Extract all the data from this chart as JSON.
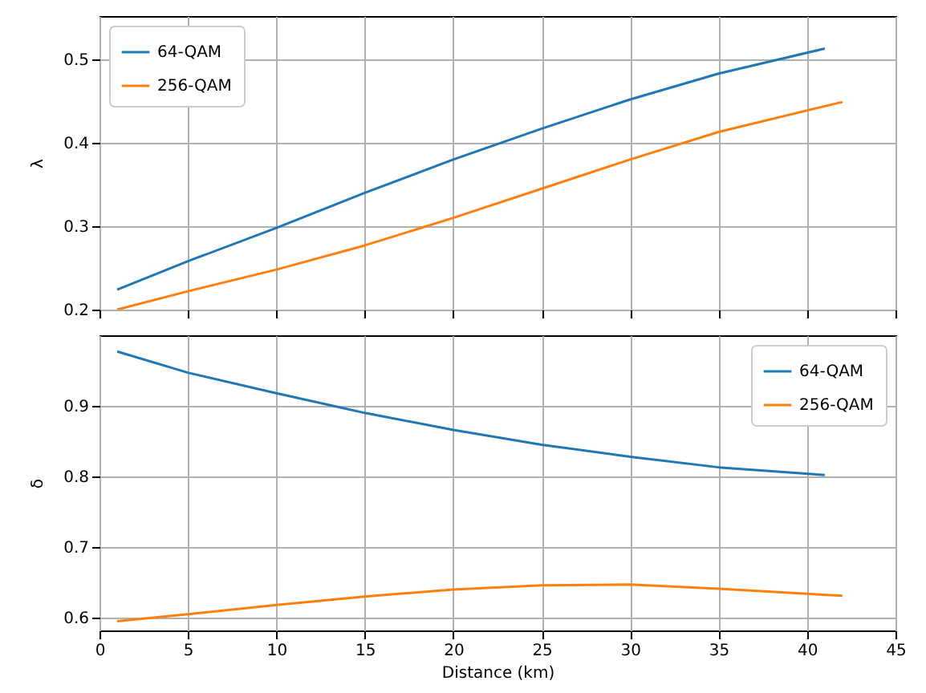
{
  "chart_data": [
    {
      "type": "line",
      "ylabel": "λ",
      "xlim": [
        0,
        45
      ],
      "xticks": [
        0,
        5,
        10,
        15,
        20,
        25,
        30,
        35,
        40,
        45
      ],
      "ylim": [
        0.2,
        0.552
      ],
      "yticks": [
        0.2,
        0.3,
        0.4,
        0.5
      ],
      "grid": true,
      "legend": "top left",
      "tick_labels": "y",
      "series": [
        {
          "name": "64-QAM",
          "color": "#1f77b4",
          "x": [
            1,
            5,
            10,
            15,
            20,
            25,
            30,
            35,
            41
          ],
          "values": [
            0.224,
            0.258,
            0.298,
            0.34,
            0.38,
            0.417,
            0.452,
            0.483,
            0.513
          ]
        },
        {
          "name": "256-QAM",
          "color": "#ff7f0e",
          "x": [
            1,
            5,
            10,
            15,
            20,
            25,
            30,
            35,
            42
          ],
          "values": [
            0.2,
            0.222,
            0.248,
            0.277,
            0.31,
            0.345,
            0.38,
            0.413,
            0.449
          ]
        }
      ]
    },
    {
      "type": "line",
      "xlabel": "Distance (km)",
      "ylabel": "δ",
      "xlim": [
        0,
        45
      ],
      "xticks": [
        0,
        5,
        10,
        15,
        20,
        25,
        30,
        35,
        40,
        45
      ],
      "ylim": [
        0.582,
        1.0
      ],
      "yticks": [
        0.6,
        0.7,
        0.8,
        0.9
      ],
      "grid": true,
      "legend": "top right",
      "series": [
        {
          "name": "64-QAM",
          "color": "#1f77b4",
          "x": [
            1,
            5,
            10,
            15,
            20,
            25,
            30,
            35,
            41
          ],
          "values": [
            0.977,
            0.947,
            0.918,
            0.89,
            0.866,
            0.845,
            0.828,
            0.813,
            0.802
          ]
        },
        {
          "name": "256-QAM",
          "color": "#ff7f0e",
          "x": [
            1,
            5,
            10,
            15,
            20,
            25,
            30,
            35,
            42
          ],
          "values": [
            0.595,
            0.605,
            0.618,
            0.63,
            0.64,
            0.646,
            0.647,
            0.641,
            0.631
          ]
        }
      ]
    }
  ]
}
